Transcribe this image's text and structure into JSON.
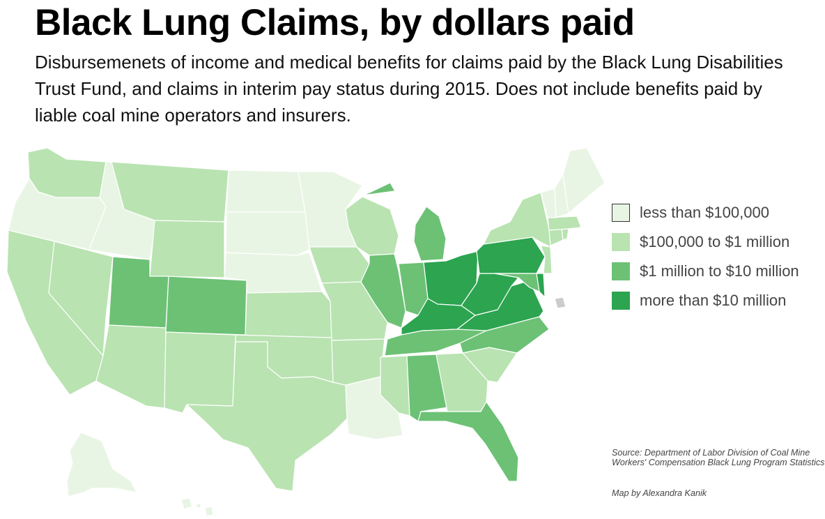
{
  "title": "Black Lung Claims, by dollars paid",
  "subtitle": "Disbursemenets of income and medical benefits for claims paid by the Black Lung Disabilities Trust Fund, and claims in interim pay status during 2015. Does not include benefits paid by liable coal mine operators and insurers.",
  "legend": [
    {
      "key": "t1",
      "label": "less than $100,000",
      "color": "#e9f5e4",
      "border": "#333333"
    },
    {
      "key": "t2",
      "label": "$100,000 to $1 million",
      "color": "#b9e3b1"
    },
    {
      "key": "t3",
      "label": "$1 million to $10 million",
      "color": "#6cc175"
    },
    {
      "key": "t4",
      "label": "more than $10 million",
      "color": "#2ca450"
    }
  ],
  "dc_color": "#cccccc",
  "source": "Source: Department of Labor Division of Coal Mine Workers' Compensation Black Lung Program Statistics",
  "credit": "Map by Alexandra Kanik",
  "states": [
    {
      "id": "WA",
      "tier": "t2"
    },
    {
      "id": "OR",
      "tier": "t1"
    },
    {
      "id": "CA",
      "tier": "t2"
    },
    {
      "id": "NV",
      "tier": "t2"
    },
    {
      "id": "ID",
      "tier": "t1"
    },
    {
      "id": "MT",
      "tier": "t2"
    },
    {
      "id": "WY",
      "tier": "t2"
    },
    {
      "id": "UT",
      "tier": "t3"
    },
    {
      "id": "AZ",
      "tier": "t2"
    },
    {
      "id": "CO",
      "tier": "t3"
    },
    {
      "id": "NM",
      "tier": "t2"
    },
    {
      "id": "ND",
      "tier": "t1"
    },
    {
      "id": "SD",
      "tier": "t1"
    },
    {
      "id": "NE",
      "tier": "t1"
    },
    {
      "id": "KS",
      "tier": "t2"
    },
    {
      "id": "OK",
      "tier": "t2"
    },
    {
      "id": "TX",
      "tier": "t2"
    },
    {
      "id": "MN",
      "tier": "t1"
    },
    {
      "id": "IA",
      "tier": "t2"
    },
    {
      "id": "MO",
      "tier": "t2"
    },
    {
      "id": "AR",
      "tier": "t2"
    },
    {
      "id": "LA",
      "tier": "t1"
    },
    {
      "id": "WI",
      "tier": "t2"
    },
    {
      "id": "IL",
      "tier": "t3"
    },
    {
      "id": "MI",
      "tier": "t3"
    },
    {
      "id": "IN",
      "tier": "t3"
    },
    {
      "id": "OH",
      "tier": "t4"
    },
    {
      "id": "KY",
      "tier": "t4"
    },
    {
      "id": "TN",
      "tier": "t3"
    },
    {
      "id": "MS",
      "tier": "t2"
    },
    {
      "id": "AL",
      "tier": "t3"
    },
    {
      "id": "GA",
      "tier": "t2"
    },
    {
      "id": "FL",
      "tier": "t3"
    },
    {
      "id": "SC",
      "tier": "t2"
    },
    {
      "id": "NC",
      "tier": "t3"
    },
    {
      "id": "VA",
      "tier": "t4"
    },
    {
      "id": "WV",
      "tier": "t4"
    },
    {
      "id": "PA",
      "tier": "t4"
    },
    {
      "id": "NY",
      "tier": "t2"
    },
    {
      "id": "MD",
      "tier": "t3"
    },
    {
      "id": "DE",
      "tier": "t4"
    },
    {
      "id": "NJ",
      "tier": "t2"
    },
    {
      "id": "CT",
      "tier": "t2"
    },
    {
      "id": "RI",
      "tier": "t2"
    },
    {
      "id": "MA",
      "tier": "t2"
    },
    {
      "id": "VT",
      "tier": "t1"
    },
    {
      "id": "NH",
      "tier": "t1"
    },
    {
      "id": "ME",
      "tier": "t1"
    },
    {
      "id": "AK",
      "tier": "t1"
    },
    {
      "id": "HI",
      "tier": "t1"
    },
    {
      "id": "DC",
      "tier": "dc"
    }
  ]
}
